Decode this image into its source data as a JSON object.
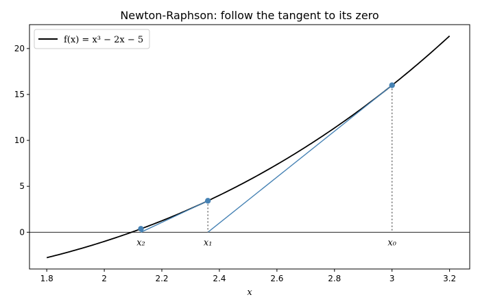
{
  "chart_data": {
    "type": "line",
    "title": "Newton-Raphson: follow the tangent to its zero",
    "xlabel": "x",
    "ylabel": "",
    "xlim": [
      1.74,
      3.27
    ],
    "ylim": [
      -4.0,
      22.6
    ],
    "xticks": [
      1.8,
      2.0,
      2.2,
      2.4,
      2.6,
      2.8,
      3.0,
      3.2
    ],
    "yticks": [
      0,
      5,
      10,
      15,
      20
    ],
    "grid": false,
    "legend_placement": "top-left",
    "series": [
      {
        "name": "f(x) = x³ − 2x − 5",
        "color": "#000000",
        "x": [
          1.8,
          1.9,
          2.0,
          2.1,
          2.2,
          2.3,
          2.4,
          2.5,
          2.6,
          2.7,
          2.8,
          2.9,
          3.0,
          3.1,
          3.2
        ],
        "y": [
          -2.768,
          -1.941,
          -1.0,
          0.061,
          1.248,
          2.567,
          4.024,
          5.625,
          7.376,
          9.283,
          11.352,
          13.589,
          16.0,
          18.591,
          21.368
        ]
      }
    ],
    "iterates": [
      {
        "label": "x₀",
        "x": 3.0,
        "fx": 16.0
      },
      {
        "label": "x₁",
        "x": 2.36,
        "fx": 3.4242
      },
      {
        "label": "x₂",
        "x": 2.1272,
        "fx": 0.3711
      }
    ],
    "tangent_color": "#4682b4"
  }
}
